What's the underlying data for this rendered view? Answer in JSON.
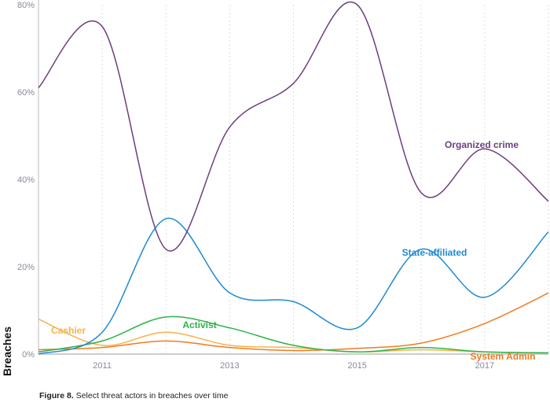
{
  "chart_data": {
    "type": "line",
    "ylabel": "Breaches",
    "x": [
      2010,
      2011,
      2012,
      2013,
      2014,
      2015,
      2016,
      2017,
      2018
    ],
    "x_tick_labels": [
      "2011",
      "2013",
      "2015",
      "2017"
    ],
    "y_tick_labels": [
      "0%",
      "20%",
      "40%",
      "60%",
      "80%"
    ],
    "ylim": [
      0,
      80
    ],
    "grid": "vertical dotted",
    "series": [
      {
        "name": "Organized crime",
        "color": "#6b3f7f",
        "values": [
          61,
          75,
          24,
          52,
          62,
          80,
          37,
          47,
          35
        ]
      },
      {
        "name": "State-affiliated",
        "color": "#1f8ad0",
        "values": [
          0,
          5,
          31,
          14,
          12,
          6,
          24,
          13,
          28
        ]
      },
      {
        "name": "Activist",
        "color": "#2db34a",
        "values": [
          0.5,
          3,
          8.5,
          6,
          2,
          0.5,
          1.5,
          0.5,
          0.3
        ]
      },
      {
        "name": "Cashier",
        "color": "#f7b24a",
        "values": [
          8,
          2,
          5,
          2,
          1.5,
          0.5,
          1,
          0.5,
          0.2
        ]
      },
      {
        "name": "System Admin",
        "color": "#f07b1f",
        "values": [
          1,
          1.5,
          3,
          1.5,
          0.8,
          1.3,
          2.5,
          7,
          14
        ]
      }
    ]
  },
  "caption": {
    "bold": "Figure 8.",
    "text": " Select threat actors in breaches over time"
  }
}
